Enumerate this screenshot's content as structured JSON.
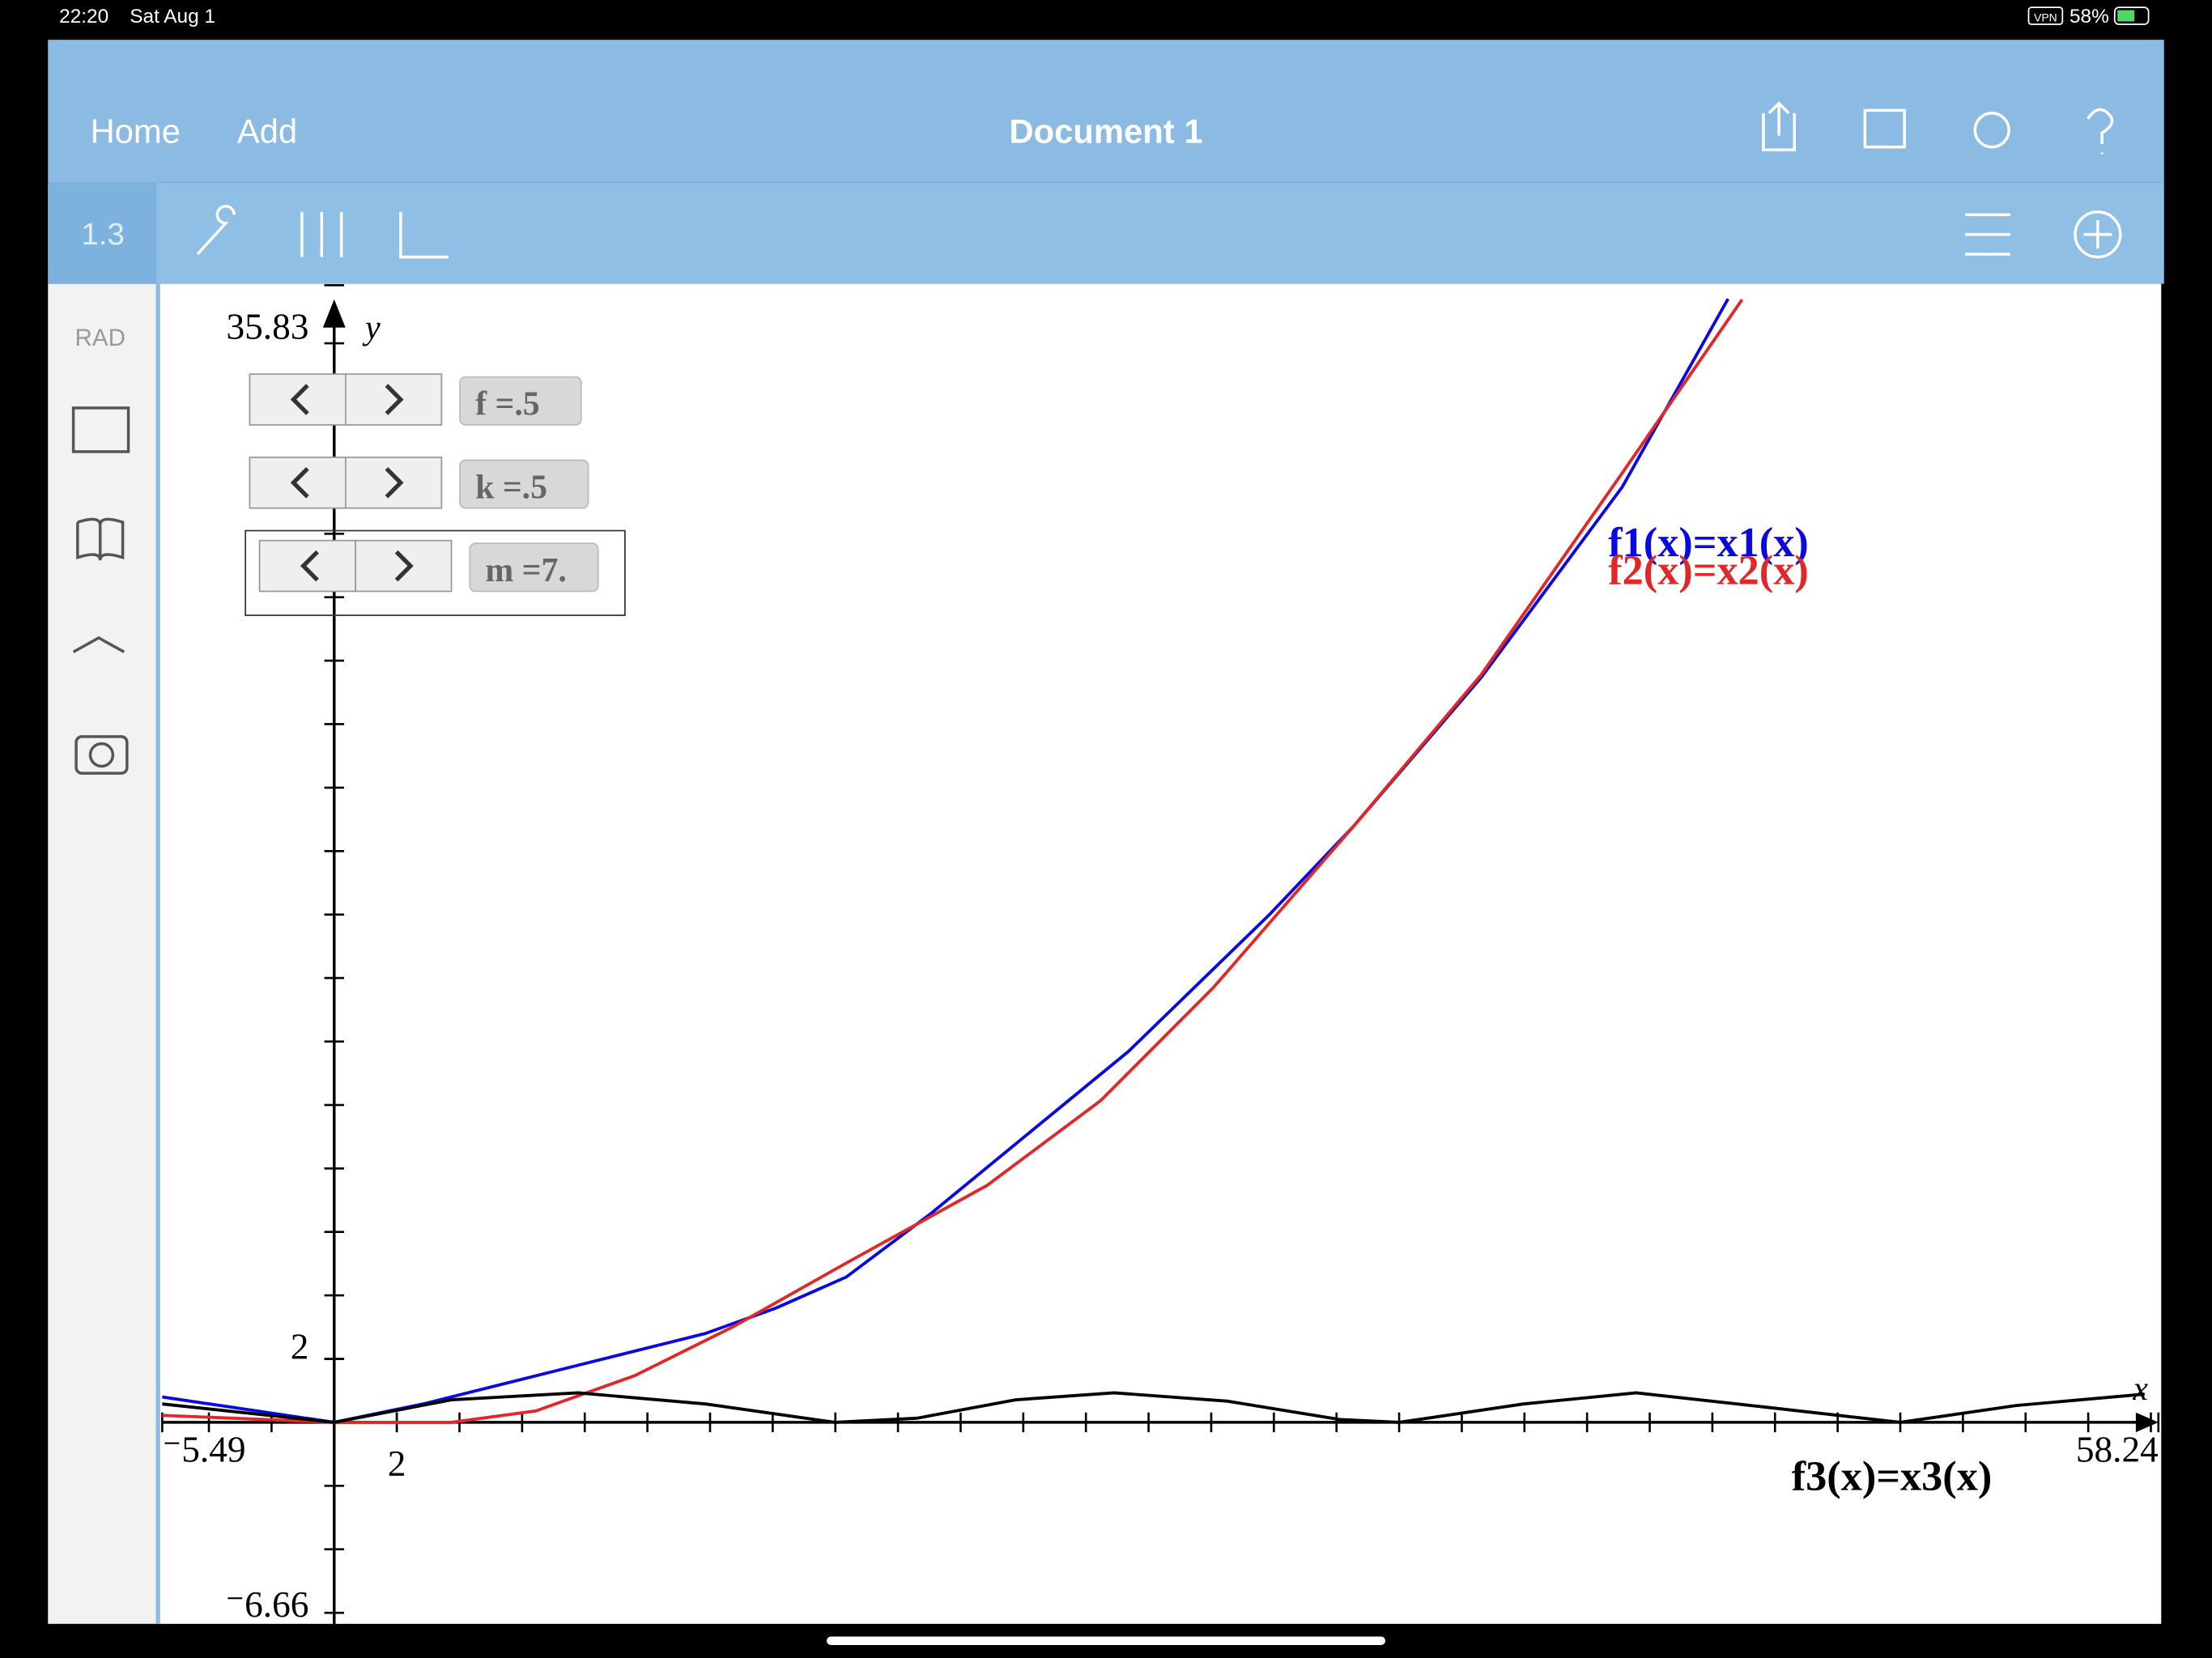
{
  "status_bar": {
    "time": "22:20",
    "date": "Sat Aug 1",
    "vpn": "VPN",
    "battery": "58%"
  },
  "toolbar": {
    "home": "Home",
    "add": "Add",
    "title": "Document 1",
    "page_tab": "1.3",
    "angle_mode": "RAD"
  },
  "sliders": [
    "f =.5",
    "k =.5",
    "m =7."
  ],
  "chart_data": {
    "type": "line",
    "x_label": "x",
    "y_label": "y",
    "xlim": [
      -5.49,
      58.24
    ],
    "ylim": [
      -6.66,
      35.83
    ],
    "xticks": [
      {
        "value": -5.49,
        "label": "⁻5.49"
      },
      2,
      58.24
    ],
    "yticks": [
      {
        "value": -6.66,
        "label": "⁻6.66"
      },
      2,
      35.83
    ],
    "minor_tick_step": 2,
    "series": [
      {
        "name": "f1(x)=x1(x)",
        "color": "#0a0ae0",
        "x": [
          -5.49,
          0,
          2.84,
          7.34,
          11.85,
          14.1,
          16.35,
          19.05,
          25.36,
          29.86,
          32.56,
          36.62,
          41.12,
          44.5
        ],
        "values": [
          0.8,
          0,
          0.58,
          1.69,
          2.8,
          3.6,
          4.58,
          6.58,
          11.69,
          16.0,
          18.8,
          23.47,
          29.47,
          35.4
        ]
      },
      {
        "name": "f2(x)=x2(x)",
        "color": "#e02828",
        "x": [
          -5.49,
          0,
          3.74,
          6.44,
          9.59,
          12.75,
          16.35,
          20.85,
          24.46,
          28.06,
          32.56,
          36.62,
          41.12,
          44.95
        ],
        "values": [
          0.22,
          0,
          0,
          0.36,
          1.47,
          3.02,
          5.02,
          7.47,
          10.13,
          13.69,
          18.8,
          23.56,
          29.91,
          35.38
        ]
      },
      {
        "name": "f3(x)=x3(x)",
        "color": "#000000",
        "x": [
          -5.49,
          0,
          3.74,
          7.79,
          11.85,
          15.99,
          18.6,
          21.75,
          24.9,
          28.5,
          32.1,
          34,
          37.97,
          41.57,
          45.6,
          50,
          53.7,
          57.8
        ],
        "values": [
          0.58,
          0,
          0.71,
          0.93,
          0.58,
          0,
          0.13,
          0.71,
          0.93,
          0.67,
          0.09,
          0,
          0.58,
          0.93,
          0.49,
          0,
          0.53,
          0.89
        ]
      }
    ]
  }
}
